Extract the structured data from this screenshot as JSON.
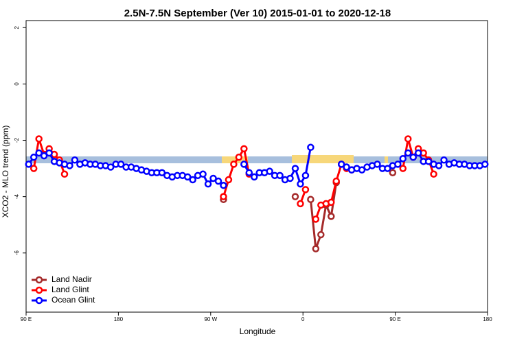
{
  "chart_data": {
    "type": "line",
    "title": "2.5N-7.5N September (Ver 10)   2015-01-01 to 2020-12-18",
    "xlabel": "Longitude",
    "ylabel": "XCO2 - MLO trend (ppm)",
    "xlim": [
      90,
      540
    ],
    "xticks": [
      {
        "value": 90,
        "label": "90 E"
      },
      180,
      {
        "value": 270,
        "label": "90 W"
      },
      {
        "value": 360,
        "label": "0"
      },
      {
        "value": 450,
        "label": "90 E"
      },
      {
        "value": 540,
        "label": "180"
      }
    ],
    "ylim": [
      -8.1,
      2.25
    ],
    "yticks": [
      -6,
      -4,
      -2,
      0,
      2
    ],
    "legend": "bottom-left",
    "x": [
      92.5,
      97.5,
      102.5,
      107.5,
      112.5,
      117.5,
      122.5,
      127.5,
      132.5,
      137.5,
      142.5,
      147.5,
      152.5,
      157.5,
      162.5,
      167.5,
      172.5,
      177.5,
      182.5,
      187.5,
      192.5,
      197.5,
      202.5,
      207.5,
      212.5,
      217.5,
      222.5,
      227.5,
      232.5,
      237.5,
      242.5,
      247.5,
      252.5,
      257.5,
      262.5,
      267.5,
      272.5,
      277.5,
      282.5,
      287.5,
      292.5,
      297.5,
      302.5,
      307.5,
      312.5,
      317.5,
      322.5,
      327.5,
      332.5,
      337.5,
      342.5,
      347.5,
      352.5,
      357.5,
      362.5,
      367.5,
      372.5,
      377.5,
      382.5,
      387.5,
      392.5,
      397.5,
      402.5,
      407.5,
      412.5,
      417.5,
      422.5,
      427.5,
      432.5,
      437.5,
      442.5,
      447.5,
      452.5,
      457.5,
      462.5,
      467.5,
      472.5,
      477.5,
      482.5,
      487.5,
      492.5,
      497.5,
      502.5,
      507.5,
      512.5,
      517.5,
      522.5,
      527.5,
      532.5,
      537.5
    ],
    "series": [
      {
        "name": "Land Nadir",
        "color": "#a52a2a",
        "values": [
          null,
          null,
          null,
          null,
          null,
          null,
          null,
          null,
          null,
          null,
          null,
          null,
          null,
          null,
          null,
          null,
          null,
          null,
          null,
          null,
          null,
          null,
          null,
          null,
          null,
          null,
          null,
          null,
          null,
          null,
          null,
          null,
          null,
          null,
          null,
          null,
          null,
          null,
          -4.1,
          null,
          null,
          null,
          null,
          null,
          null,
          null,
          null,
          null,
          null,
          null,
          null,
          null,
          -4.0,
          null,
          null,
          -4.1,
          -5.85,
          -5.35,
          -4.3,
          -4.7,
          -3.5,
          null,
          null,
          null,
          null,
          null,
          null,
          null,
          null,
          null,
          null,
          -3.15,
          null,
          null,
          null,
          null,
          null,
          null,
          null,
          null,
          null,
          null,
          null,
          null,
          null,
          null,
          null,
          null,
          null,
          null
        ]
      },
      {
        "name": "Land Glint",
        "color": "#ff0000",
        "values": [
          null,
          -3.0,
          -1.95,
          -2.5,
          -2.3,
          -2.5,
          -2.7,
          -3.2,
          null,
          null,
          null,
          null,
          null,
          null,
          null,
          null,
          null,
          null,
          null,
          null,
          null,
          null,
          null,
          null,
          null,
          null,
          null,
          null,
          null,
          null,
          null,
          null,
          null,
          null,
          null,
          null,
          null,
          null,
          -4.0,
          -3.4,
          -2.85,
          -2.6,
          -2.3,
          -3.2,
          null,
          null,
          null,
          null,
          null,
          null,
          null,
          null,
          null,
          -4.25,
          -3.75,
          null,
          -4.8,
          -4.3,
          -4.25,
          -4.2,
          -3.45,
          -2.85,
          -3.0,
          -3.05,
          null,
          null,
          null,
          null,
          null,
          null,
          null,
          null,
          null,
          -3.0,
          -1.95,
          -2.6,
          -2.3,
          -2.45,
          -2.7,
          -3.2,
          null,
          null,
          null,
          null,
          null,
          null,
          null,
          null,
          null,
          null
        ]
      },
      {
        "name": "Ocean Glint",
        "color": "#0000ff",
        "values": [
          -2.85,
          -2.6,
          -2.45,
          -2.55,
          -2.45,
          -2.75,
          -2.8,
          -2.85,
          -2.9,
          -2.7,
          -2.85,
          -2.8,
          -2.85,
          -2.85,
          -2.9,
          -2.9,
          -2.95,
          -2.85,
          -2.85,
          -2.95,
          -2.95,
          -3.0,
          -3.05,
          -3.1,
          -3.15,
          -3.15,
          -3.15,
          -3.25,
          -3.3,
          -3.25,
          -3.25,
          -3.3,
          -3.4,
          -3.25,
          -3.2,
          -3.55,
          -3.35,
          -3.45,
          -3.6,
          null,
          null,
          null,
          -2.85,
          -3.15,
          -3.3,
          -3.15,
          -3.15,
          -3.1,
          -3.25,
          -3.25,
          -3.4,
          -3.35,
          -3.0,
          -3.55,
          -3.25,
          -2.25,
          null,
          null,
          null,
          null,
          null,
          -2.85,
          -2.95,
          -3.05,
          -3.0,
          -3.05,
          -2.95,
          -2.9,
          -2.85,
          -3.0,
          -3.0,
          -2.9,
          -2.85,
          -2.65,
          -2.45,
          -2.6,
          -2.45,
          -2.75,
          -2.75,
          -2.85,
          -2.9,
          -2.7,
          -2.85,
          -2.8,
          -2.85,
          -2.85,
          -2.9,
          -2.9,
          -2.9,
          -2.85
        ]
      }
    ]
  }
}
